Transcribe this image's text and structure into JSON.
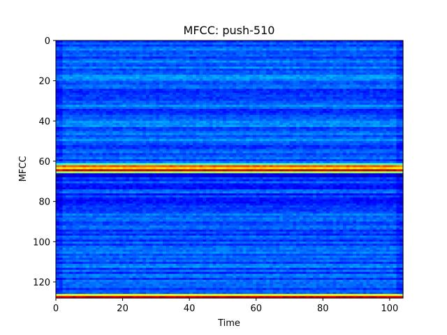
{
  "chart_data": {
    "type": "heatmap",
    "title": "MFCC: push-510",
    "xlabel": "Time",
    "ylabel": "MFCC",
    "xlim": [
      0,
      104
    ],
    "ylim": [
      128,
      0
    ],
    "y_inverted": true,
    "grid": false,
    "colormap": "jet",
    "x_ticks": [
      0,
      20,
      40,
      60,
      80,
      100
    ],
    "y_ticks": [
      0,
      20,
      40,
      60,
      80,
      100,
      120
    ],
    "x_tick_labels": [
      "0",
      "20",
      "40",
      "60",
      "80",
      "100"
    ],
    "y_tick_labels": [
      "0",
      "20",
      "40",
      "60",
      "80",
      "100",
      "120"
    ],
    "n_rows": 128,
    "n_cols": 104,
    "row_profile": [
      {
        "row": 0,
        "value": 0.22
      },
      {
        "row": 60,
        "value": 0.22
      },
      {
        "row": 62,
        "value": 0.78
      },
      {
        "row": 63,
        "value": 0.6
      },
      {
        "row": 64,
        "value": 0.9
      },
      {
        "row": 66,
        "value": 0.12
      },
      {
        "row": 68,
        "value": 0.18
      },
      {
        "row": 125,
        "value": 0.22
      },
      {
        "row": 126,
        "value": 0.55
      },
      {
        "row": 127,
        "value": 0.95
      }
    ],
    "colors": {
      "low": "#00007f",
      "mid": "#1e5cff",
      "high": "#7f0000"
    }
  }
}
